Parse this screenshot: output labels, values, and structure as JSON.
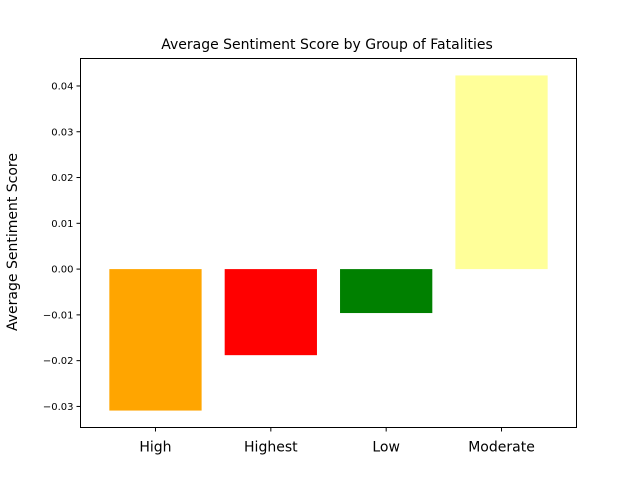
{
  "chart_data": {
    "type": "bar",
    "title": "Average Sentiment Score by Group of Fatalities",
    "xlabel": "",
    "ylabel": "Average Sentiment Score",
    "categories": [
      "High",
      "Highest",
      "Low",
      "Moderate"
    ],
    "values": [
      -0.0309,
      -0.0188,
      -0.0096,
      0.0423
    ],
    "colors": [
      "#ffa500",
      "#ff0000",
      "#008000",
      "#ffff99"
    ],
    "ylim": [
      -0.0346,
      0.046
    ],
    "yticks": [
      -0.03,
      -0.02,
      -0.01,
      0.0,
      0.01,
      0.02,
      0.03,
      0.04
    ],
    "ytick_labels": [
      "−0.03",
      "−0.02",
      "−0.01",
      "0.00",
      "0.01",
      "0.02",
      "0.03",
      "0.04"
    ],
    "grid": false
  }
}
